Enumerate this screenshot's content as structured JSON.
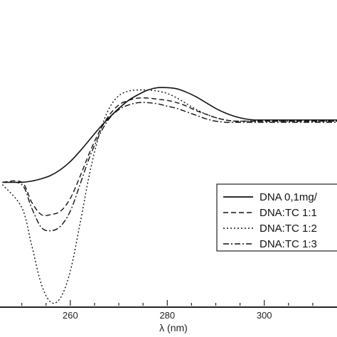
{
  "chart_data": {
    "type": "line",
    "xlabel": "λ (nm)",
    "ylabel": "",
    "title": "",
    "xlim": [
      245.5,
      315
    ],
    "ylim": [
      -12.5,
      14
    ],
    "x_ticks": [
      260,
      280,
      300
    ],
    "grid": false,
    "legend_position": "bottom-right",
    "series": [
      {
        "name": "DNA 0,1mg/",
        "dash": "solid",
        "x": [
          246,
          250,
          252,
          254,
          256,
          258,
          260,
          262,
          264,
          266,
          268,
          270,
          272,
          274,
          276,
          278,
          280,
          282,
          284,
          286,
          288,
          290,
          292,
          294,
          296,
          298,
          300,
          305,
          310,
          315
        ],
        "y": [
          -1.8,
          -1.8,
          -1.7,
          -1.5,
          -1.2,
          -0.7,
          0.0,
          0.9,
          1.9,
          2.9,
          3.8,
          4.6,
          5.3,
          5.8,
          6.2,
          6.4,
          6.4,
          6.3,
          6.0,
          5.6,
          5.1,
          4.6,
          4.2,
          3.9,
          3.7,
          3.6,
          3.6,
          3.6,
          3.6,
          3.6
        ]
      },
      {
        "name": "DNA:TC 1:1",
        "dash": "dashed",
        "x": [
          246,
          250,
          252,
          254,
          256,
          258,
          260,
          262,
          264,
          266,
          268,
          270,
          272,
          274,
          276,
          278,
          280,
          282,
          284,
          286,
          288,
          290,
          292,
          294,
          296,
          298,
          300,
          305,
          310,
          315
        ],
        "y": [
          -1.8,
          -1.8,
          -3.5,
          -4.6,
          -4.6,
          -4.3,
          -3.2,
          -1.3,
          0.8,
          2.6,
          4.0,
          4.9,
          5.3,
          5.5,
          5.5,
          5.4,
          5.3,
          5.1,
          4.8,
          4.4,
          4.1,
          3.8,
          3.6,
          3.5,
          3.5,
          3.5,
          3.5,
          3.5,
          3.5,
          3.5
        ]
      },
      {
        "name": "DNA:TC 1:2",
        "dash": "dotted",
        "x": [
          246,
          250,
          252,
          254,
          256,
          258,
          260,
          262,
          264,
          266,
          268,
          270,
          272,
          274,
          276,
          278,
          280,
          282,
          284,
          286,
          288,
          290,
          292,
          294,
          296,
          298,
          300,
          305,
          310,
          315
        ],
        "y": [
          -2.0,
          -4.0,
          -7.2,
          -10.6,
          -12.2,
          -11.8,
          -9.5,
          -5.4,
          -1.0,
          2.4,
          4.6,
          5.7,
          6.1,
          6.2,
          6.2,
          6.1,
          5.9,
          5.5,
          5.0,
          4.5,
          4.1,
          3.8,
          3.6,
          3.5,
          3.5,
          3.5,
          3.5,
          3.5,
          3.5,
          3.5
        ]
      },
      {
        "name": "DNA:TC 1:3",
        "dash": "dash-dot",
        "x": [
          246,
          250,
          252,
          254,
          256,
          258,
          260,
          262,
          264,
          266,
          268,
          270,
          272,
          274,
          276,
          278,
          280,
          282,
          284,
          286,
          288,
          290,
          292,
          294,
          296,
          298,
          300,
          305,
          310,
          315
        ],
        "y": [
          -1.8,
          -2.0,
          -4.0,
          -5.7,
          -6.0,
          -5.6,
          -4.3,
          -2.0,
          0.4,
          2.3,
          3.7,
          4.5,
          4.9,
          5.1,
          5.1,
          5.0,
          4.8,
          4.6,
          4.3,
          4.0,
          3.7,
          3.5,
          3.4,
          3.4,
          3.4,
          3.4,
          3.4,
          3.4,
          3.4,
          3.4
        ]
      }
    ]
  }
}
